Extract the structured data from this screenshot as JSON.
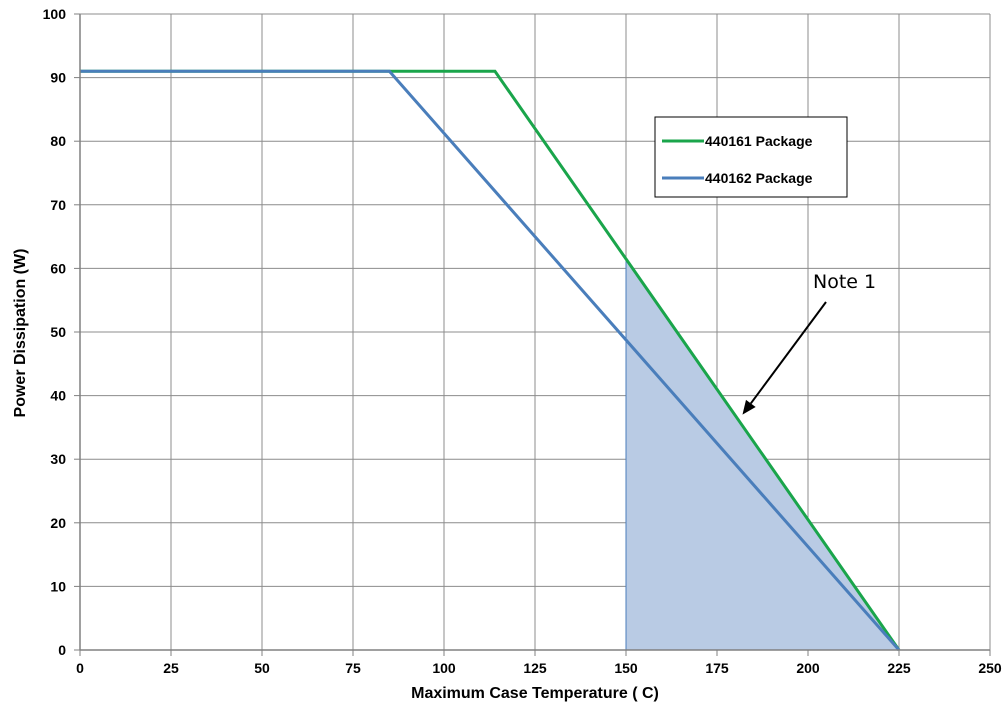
{
  "chart_data": {
    "type": "line",
    "title": "",
    "xlabel": "Maximum Case Temperature ( C)",
    "ylabel": "Power Dissipation (W)",
    "xlim": [
      0,
      250
    ],
    "ylim": [
      0,
      100
    ],
    "x_ticks": [
      0,
      25,
      50,
      75,
      100,
      125,
      150,
      175,
      200,
      225,
      250
    ],
    "y_ticks": [
      0,
      10,
      20,
      30,
      40,
      50,
      60,
      70,
      80,
      90,
      100
    ],
    "grid": true,
    "legend_position": "top-right",
    "series": [
      {
        "name": "440161 Package",
        "color": "#1aa54b",
        "points": [
          [
            0,
            91
          ],
          [
            114,
            91
          ],
          [
            225,
            0
          ]
        ]
      },
      {
        "name": "440162 Package",
        "color": "#4a7ebb",
        "points": [
          [
            0,
            91
          ],
          [
            85,
            91
          ],
          [
            225,
            0
          ]
        ]
      }
    ],
    "shaded_region": {
      "color": "#b9cbe4",
      "points": [
        [
          150,
          0
        ],
        [
          150,
          61.5
        ],
        [
          225,
          0
        ]
      ]
    },
    "annotations": [
      {
        "text": "Note 1",
        "points_to": [
          182,
          37
        ]
      }
    ]
  }
}
